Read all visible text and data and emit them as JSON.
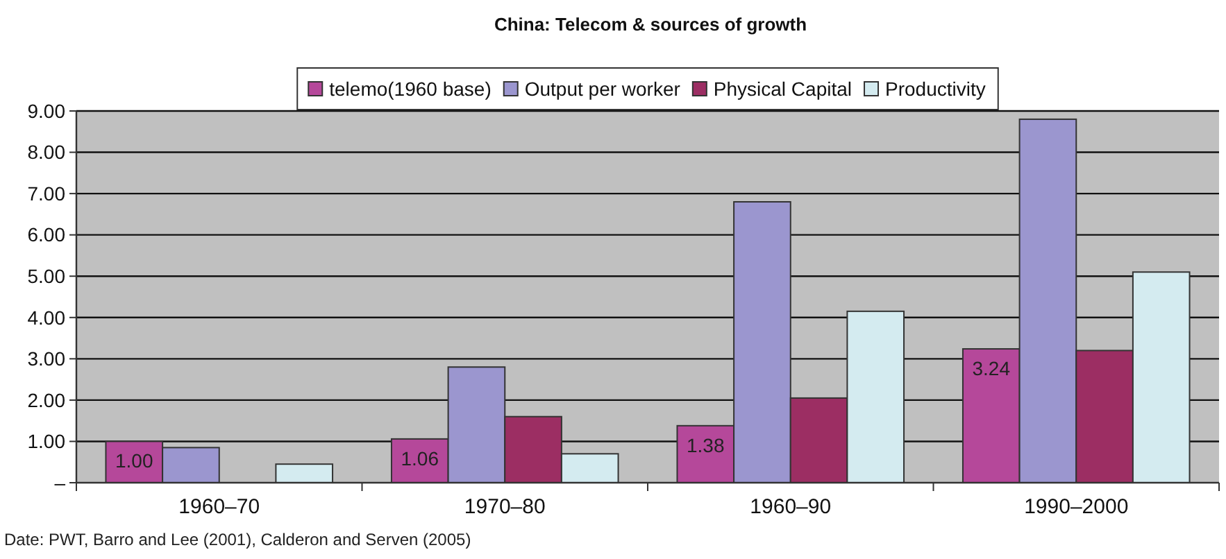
{
  "chart_data": {
    "type": "bar",
    "title": "China: Telecom & sources of growth",
    "categories": [
      "1960–70",
      "1970–80",
      "1960–90",
      "1990–2000"
    ],
    "series": [
      {
        "name": "telemo(1960 base)",
        "color": "#b5489a",
        "values": [
          1.0,
          1.06,
          1.38,
          3.24
        ],
        "value_labels": [
          "1.00",
          "1.06",
          "1.38",
          "3.24"
        ]
      },
      {
        "name": "Output per worker",
        "color": "#9b96cf",
        "values": [
          0.85,
          2.8,
          6.8,
          8.8
        ]
      },
      {
        "name": "Physical Capital",
        "color": "#9c2e63",
        "values": [
          null,
          1.6,
          2.05,
          3.2
        ]
      },
      {
        "name": "Productivity",
        "color": "#d4ebf0",
        "values": [
          0.45,
          0.7,
          4.15,
          5.1
        ]
      }
    ],
    "ylim": [
      0,
      9
    ],
    "yticks": [
      {
        "value": 0,
        "label": "–"
      },
      {
        "value": 1,
        "label": "1.00"
      },
      {
        "value": 2,
        "label": "2.00"
      },
      {
        "value": 3,
        "label": "3.00"
      },
      {
        "value": 4,
        "label": "4.00"
      },
      {
        "value": 5,
        "label": "5.00"
      },
      {
        "value": 6,
        "label": "6.00"
      },
      {
        "value": 7,
        "label": "7.00"
      },
      {
        "value": 8,
        "label": "8.00"
      },
      {
        "value": 9,
        "label": "9.00"
      }
    ],
    "grid": "y",
    "legend": "top",
    "annotations": [
      "Date: PWT, Barro and Lee (2001), Calderon and Serven (2005)"
    ]
  }
}
